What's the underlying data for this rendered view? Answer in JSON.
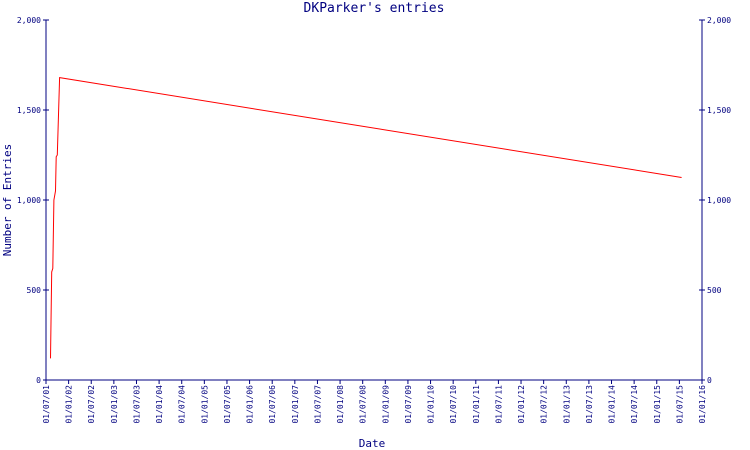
{
  "chart_data": {
    "type": "line",
    "title": "DKParker's entries",
    "xlabel": "Date",
    "ylabel": "Number of Entries",
    "ylim": [
      0,
      2000
    ],
    "y_ticks": [
      {
        "value": 0,
        "label": "0"
      },
      {
        "value": 500,
        "label": "500"
      },
      {
        "value": 1000,
        "label": "1,000"
      },
      {
        "value": 1500,
        "label": "1,500"
      },
      {
        "value": 2000,
        "label": "2,000"
      }
    ],
    "x_tick_labels": [
      "01/07/01",
      "01/01/02",
      "01/07/02",
      "01/01/03",
      "01/07/03",
      "01/01/04",
      "01/07/04",
      "01/01/05",
      "01/07/05",
      "01/01/06",
      "01/07/06",
      "01/01/07",
      "01/07/07",
      "01/01/08",
      "01/07/08",
      "01/01/09",
      "01/07/09",
      "01/01/10",
      "01/07/10",
      "01/01/11",
      "01/07/11",
      "01/01/12",
      "01/07/12",
      "01/01/13",
      "01/07/13",
      "01/01/14",
      "01/07/14",
      "01/01/15",
      "01/07/15",
      "01/01/16"
    ],
    "series": [
      {
        "color": "#ff0000",
        "points": [
          {
            "x": 0.2,
            "y": 120
          },
          {
            "x": 0.25,
            "y": 600
          },
          {
            "x": 0.3,
            "y": 620
          },
          {
            "x": 0.35,
            "y": 1000
          },
          {
            "x": 0.42,
            "y": 1050
          },
          {
            "x": 0.45,
            "y": 1240
          },
          {
            "x": 0.5,
            "y": 1250
          },
          {
            "x": 0.6,
            "y": 1680
          },
          {
            "x": 28.1,
            "y": 1125
          }
        ]
      }
    ],
    "axis_color": "#000080",
    "grid": false
  }
}
